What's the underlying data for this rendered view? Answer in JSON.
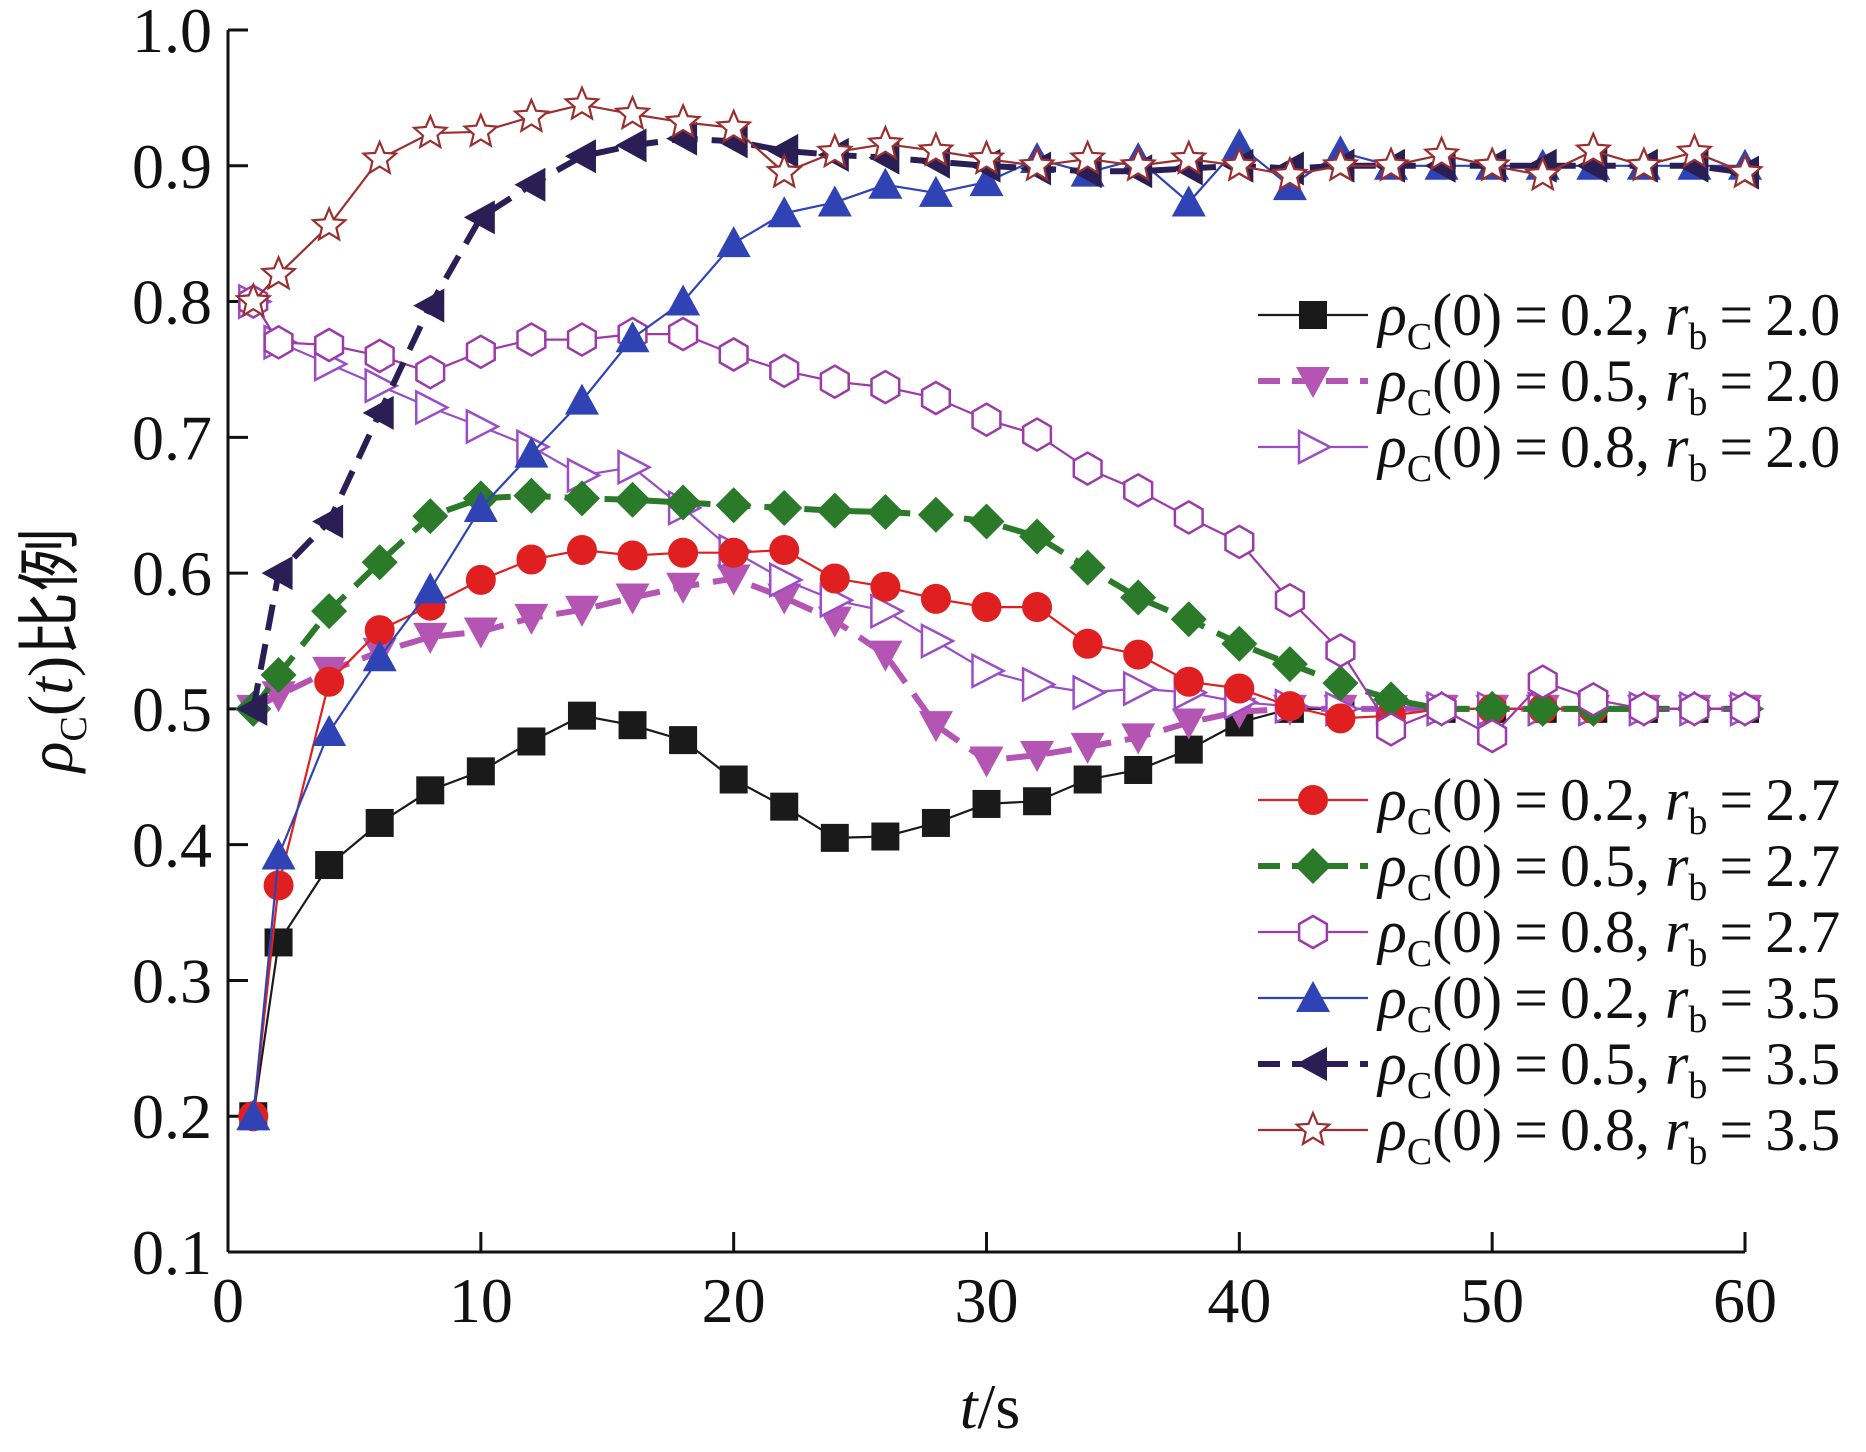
{
  "chart_data": {
    "type": "line",
    "xlabel_var": "t",
    "xlabel_unit": "/s",
    "ylabel_rho": "ρ",
    "ylabel_sub": "C",
    "ylabel_open": "(",
    "ylabel_var": "t",
    "ylabel_close": ")比例",
    "xlim": [
      0,
      60
    ],
    "ylim": [
      0.1,
      1.0
    ],
    "x_ticks": [
      0,
      10,
      20,
      30,
      40,
      50,
      60
    ],
    "x_tick_labels": [
      "0",
      "10",
      "20",
      "30",
      "40",
      "50",
      "60"
    ],
    "y_ticks": [
      0.1,
      0.2,
      0.3,
      0.4,
      0.5,
      0.6,
      0.7,
      0.8,
      0.9,
      1.0
    ],
    "y_tick_labels": [
      "0.1",
      "0.2",
      "0.3",
      "0.4",
      "0.5",
      "0.6",
      "0.7",
      "0.8",
      "0.9",
      "1.0"
    ],
    "grid": false,
    "legend_placement": "right, in two groups",
    "series": [
      {
        "name": "ρC(0)=0.2, rb=2.0",
        "rho0": "0.2",
        "rb": "2.0",
        "color": "#1a1a1a",
        "marker": "square",
        "dashed": false,
        "legend_group": "upper",
        "x": [
          1,
          2,
          4,
          6,
          8,
          10,
          12,
          14,
          16,
          18,
          20,
          22,
          24,
          26,
          28,
          30,
          32,
          34,
          36,
          38,
          40,
          42,
          44,
          46,
          48,
          50,
          52,
          54,
          56,
          58,
          60
        ],
        "y": [
          0.2,
          0.328,
          0.385,
          0.416,
          0.44,
          0.454,
          0.476,
          0.495,
          0.488,
          0.477,
          0.448,
          0.428,
          0.405,
          0.406,
          0.416,
          0.43,
          0.432,
          0.448,
          0.455,
          0.47,
          0.49,
          0.5,
          0.5,
          0.5,
          0.5,
          0.5,
          0.5,
          0.5,
          0.5,
          0.5,
          0.5
        ]
      },
      {
        "name": "ρC(0)=0.5, rb=2.0",
        "rho0": "0.5",
        "rb": "2.0",
        "color": "#b455b4",
        "marker": "triangle-down",
        "dashed": true,
        "legend_group": "upper",
        "x": [
          1,
          2,
          4,
          6,
          8,
          10,
          12,
          14,
          16,
          18,
          20,
          22,
          24,
          26,
          28,
          30,
          32,
          34,
          36,
          38,
          40,
          42,
          44,
          46,
          48,
          50,
          52,
          54,
          56,
          58,
          60
        ],
        "y": [
          0.5,
          0.51,
          0.528,
          0.542,
          0.553,
          0.557,
          0.567,
          0.573,
          0.582,
          0.59,
          0.596,
          0.582,
          0.565,
          0.54,
          0.488,
          0.462,
          0.466,
          0.472,
          0.479,
          0.49,
          0.498,
          0.5,
          0.5,
          0.5,
          0.5,
          0.5,
          0.5,
          0.5,
          0.5,
          0.5,
          0.5
        ]
      },
      {
        "name": "ρC(0)=0.8, rb=2.0",
        "rho0": "0.8",
        "rb": "2.0",
        "color": "#9b4dc8",
        "marker": "triangle-right-open",
        "dashed": false,
        "legend_group": "upper",
        "x": [
          1,
          2,
          4,
          6,
          8,
          10,
          12,
          14,
          16,
          18,
          20,
          22,
          24,
          26,
          28,
          30,
          32,
          34,
          36,
          38,
          40,
          42,
          44,
          46,
          48,
          50,
          52,
          54,
          56,
          58,
          60
        ],
        "y": [
          0.8,
          0.77,
          0.754,
          0.738,
          0.722,
          0.708,
          0.693,
          0.672,
          0.678,
          0.648,
          0.616,
          0.595,
          0.58,
          0.572,
          0.55,
          0.528,
          0.518,
          0.512,
          0.515,
          0.512,
          0.505,
          0.502,
          0.5,
          0.5,
          0.5,
          0.5,
          0.5,
          0.5,
          0.5,
          0.5,
          0.5
        ]
      },
      {
        "name": "ρC(0)=0.2, rb=2.7",
        "rho0": "0.2",
        "rb": "2.7",
        "color": "#e02020",
        "marker": "circle",
        "dashed": false,
        "legend_group": "lower",
        "x": [
          1,
          2,
          4,
          6,
          8,
          10,
          12,
          14,
          16,
          18,
          20,
          22,
          24,
          26,
          28,
          30,
          32,
          34,
          36,
          38,
          40,
          42,
          44,
          46,
          48,
          50,
          52,
          54,
          56,
          58,
          60
        ],
        "y": [
          0.2,
          0.37,
          0.52,
          0.558,
          0.576,
          0.595,
          0.61,
          0.617,
          0.613,
          0.615,
          0.615,
          0.617,
          0.596,
          0.59,
          0.581,
          0.575,
          0.575,
          0.548,
          0.54,
          0.52,
          0.515,
          0.502,
          0.493,
          0.495,
          0.5,
          0.5,
          0.5,
          0.5,
          0.5,
          0.5,
          0.5
        ]
      },
      {
        "name": "ρC(0)=0.5, rb=2.7",
        "rho0": "0.5",
        "rb": "2.7",
        "color": "#2a7a2a",
        "marker": "diamond",
        "dashed": true,
        "legend_group": "lower",
        "x": [
          1,
          2,
          4,
          6,
          8,
          10,
          12,
          14,
          16,
          18,
          20,
          22,
          24,
          26,
          28,
          30,
          32,
          34,
          36,
          38,
          40,
          42,
          44,
          46,
          48,
          50,
          52,
          54,
          56,
          58,
          60
        ],
        "y": [
          0.5,
          0.525,
          0.572,
          0.608,
          0.642,
          0.655,
          0.657,
          0.655,
          0.654,
          0.652,
          0.65,
          0.648,
          0.646,
          0.645,
          0.643,
          0.638,
          0.627,
          0.604,
          0.582,
          0.566,
          0.548,
          0.533,
          0.519,
          0.507,
          0.5,
          0.5,
          0.5,
          0.5,
          0.5,
          0.5,
          0.5
        ]
      },
      {
        "name": "ρC(0)=0.8, rb=2.7",
        "rho0": "0.8",
        "rb": "2.7",
        "color": "#9b3aa8",
        "marker": "hexagon-open",
        "dashed": false,
        "legend_group": "lower",
        "x": [
          1,
          2,
          4,
          6,
          8,
          10,
          12,
          14,
          16,
          18,
          20,
          22,
          24,
          26,
          28,
          30,
          32,
          34,
          36,
          38,
          40,
          42,
          44,
          46,
          48,
          50,
          52,
          54,
          56,
          58,
          60
        ],
        "y": [
          0.8,
          0.77,
          0.768,
          0.76,
          0.748,
          0.763,
          0.772,
          0.772,
          0.776,
          0.776,
          0.761,
          0.749,
          0.741,
          0.737,
          0.729,
          0.713,
          0.702,
          0.677,
          0.661,
          0.641,
          0.623,
          0.58,
          0.543,
          0.485,
          0.5,
          0.48,
          0.52,
          0.507,
          0.5,
          0.5,
          0.5
        ]
      },
      {
        "name": "ρC(0)=0.2, rb=3.5",
        "rho0": "0.2",
        "rb": "3.5",
        "color": "#2f43b5",
        "marker": "triangle-up",
        "dashed": false,
        "legend_group": "lower",
        "x": [
          1,
          2,
          4,
          6,
          8,
          10,
          12,
          14,
          16,
          18,
          20,
          22,
          24,
          26,
          28,
          30,
          32,
          34,
          36,
          38,
          40,
          42,
          44,
          46,
          48,
          50,
          52,
          54,
          56,
          58,
          60
        ],
        "y": [
          0.2,
          0.392,
          0.483,
          0.538,
          0.588,
          0.648,
          0.688,
          0.727,
          0.773,
          0.8,
          0.843,
          0.865,
          0.873,
          0.886,
          0.88,
          0.888,
          0.905,
          0.895,
          0.905,
          0.873,
          0.915,
          0.885,
          0.91,
          0.9,
          0.9,
          0.9,
          0.9,
          0.9,
          0.9,
          0.9,
          0.9
        ]
      },
      {
        "name": "ρC(0)=0.5, rb=3.5",
        "rho0": "0.5",
        "rb": "3.5",
        "color": "#2a1f55",
        "marker": "triangle-left",
        "dashed": true,
        "legend_group": "lower",
        "x": [
          1,
          2,
          4,
          6,
          8,
          10,
          12,
          14,
          16,
          18,
          20,
          22,
          24,
          26,
          28,
          30,
          32,
          34,
          36,
          38,
          40,
          42,
          44,
          46,
          48,
          50,
          52,
          54,
          56,
          58,
          60
        ],
        "y": [
          0.5,
          0.6,
          0.638,
          0.718,
          0.797,
          0.862,
          0.886,
          0.907,
          0.915,
          0.92,
          0.918,
          0.911,
          0.908,
          0.906,
          0.903,
          0.9,
          0.898,
          0.896,
          0.896,
          0.898,
          0.9,
          0.898,
          0.9,
          0.9,
          0.9,
          0.9,
          0.9,
          0.9,
          0.9,
          0.9,
          0.895
        ]
      },
      {
        "name": "ρC(0)=0.8, rb=3.5",
        "rho0": "0.8",
        "rb": "3.5",
        "color": "#9a2f2f",
        "marker": "star-open",
        "dashed": false,
        "legend_group": "lower",
        "x": [
          1,
          2,
          4,
          6,
          8,
          10,
          12,
          14,
          16,
          18,
          20,
          22,
          24,
          26,
          28,
          30,
          32,
          34,
          36,
          38,
          40,
          42,
          44,
          46,
          48,
          50,
          52,
          54,
          56,
          58,
          60
        ],
        "y": [
          0.8,
          0.82,
          0.856,
          0.905,
          0.924,
          0.925,
          0.936,
          0.945,
          0.938,
          0.932,
          0.928,
          0.895,
          0.91,
          0.916,
          0.911,
          0.905,
          0.9,
          0.905,
          0.9,
          0.905,
          0.9,
          0.893,
          0.9,
          0.9,
          0.908,
          0.9,
          0.893,
          0.911,
          0.9,
          0.91,
          0.895
        ]
      }
    ]
  }
}
